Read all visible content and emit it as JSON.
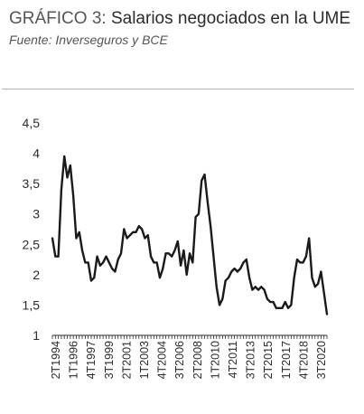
{
  "header": {
    "title_lead": "GRÁFICO 3:",
    "title_main": "Salarios negociados en la UME",
    "subtitle": "Fuente: Inverseguros y BCE"
  },
  "colors": {
    "line": "#1a1a1a",
    "text": "#2b2b2b",
    "axis": "#2b2b2b"
  },
  "chart_data": {
    "type": "line",
    "title": "GRÁFICO 3: Salarios negociados en la UME",
    "subtitle": "Fuente: Inverseguros y BCE",
    "ylim": [
      1,
      4.5
    ],
    "y_ticks": [
      "1",
      "1,5",
      "2",
      "2,5",
      "3",
      "3,5",
      "4",
      "4,5"
    ],
    "x_tick_labels": [
      "2T1994",
      "1T1996",
      "4T1997",
      "3T1999",
      "2T2001",
      "1T2003",
      "4T2004",
      "3T2006",
      "2T2008",
      "1T2010",
      "4T2011",
      "3T2013",
      "2T2015",
      "1T2017",
      "4T2018",
      "3T2020"
    ],
    "grid": false,
    "legend": "none",
    "series": [
      {
        "values": [
          2.6,
          2.3,
          2.3,
          3.4,
          3.95,
          3.6,
          3.8,
          3.3,
          2.6,
          2.7,
          2.4,
          2.2,
          2.2,
          1.9,
          1.95,
          2.3,
          2.15,
          2.2,
          2.3,
          2.2,
          2.1,
          2.05,
          2.25,
          2.35,
          2.75,
          2.6,
          2.65,
          2.7,
          2.7,
          2.8,
          2.75,
          2.6,
          2.65,
          2.3,
          2.2,
          2.2,
          1.95,
          2.1,
          2.35,
          2.35,
          2.3,
          2.4,
          2.55,
          2.15,
          2.4,
          2.0,
          2.35,
          2.2,
          2.95,
          3.0,
          3.55,
          3.65,
          3.2,
          2.8,
          2.3,
          1.8,
          1.5,
          1.6,
          1.9,
          1.95,
          2.05,
          2.1,
          2.05,
          2.1,
          2.2,
          2.25,
          1.95,
          1.75,
          1.8,
          1.75,
          1.8,
          1.75,
          1.6,
          1.55,
          1.55,
          1.45,
          1.45,
          1.45,
          1.55,
          1.45,
          1.5,
          1.95,
          2.25,
          2.2,
          2.2,
          2.3,
          2.6,
          1.95,
          1.8,
          1.85,
          2.05,
          1.7,
          1.35
        ]
      }
    ]
  }
}
